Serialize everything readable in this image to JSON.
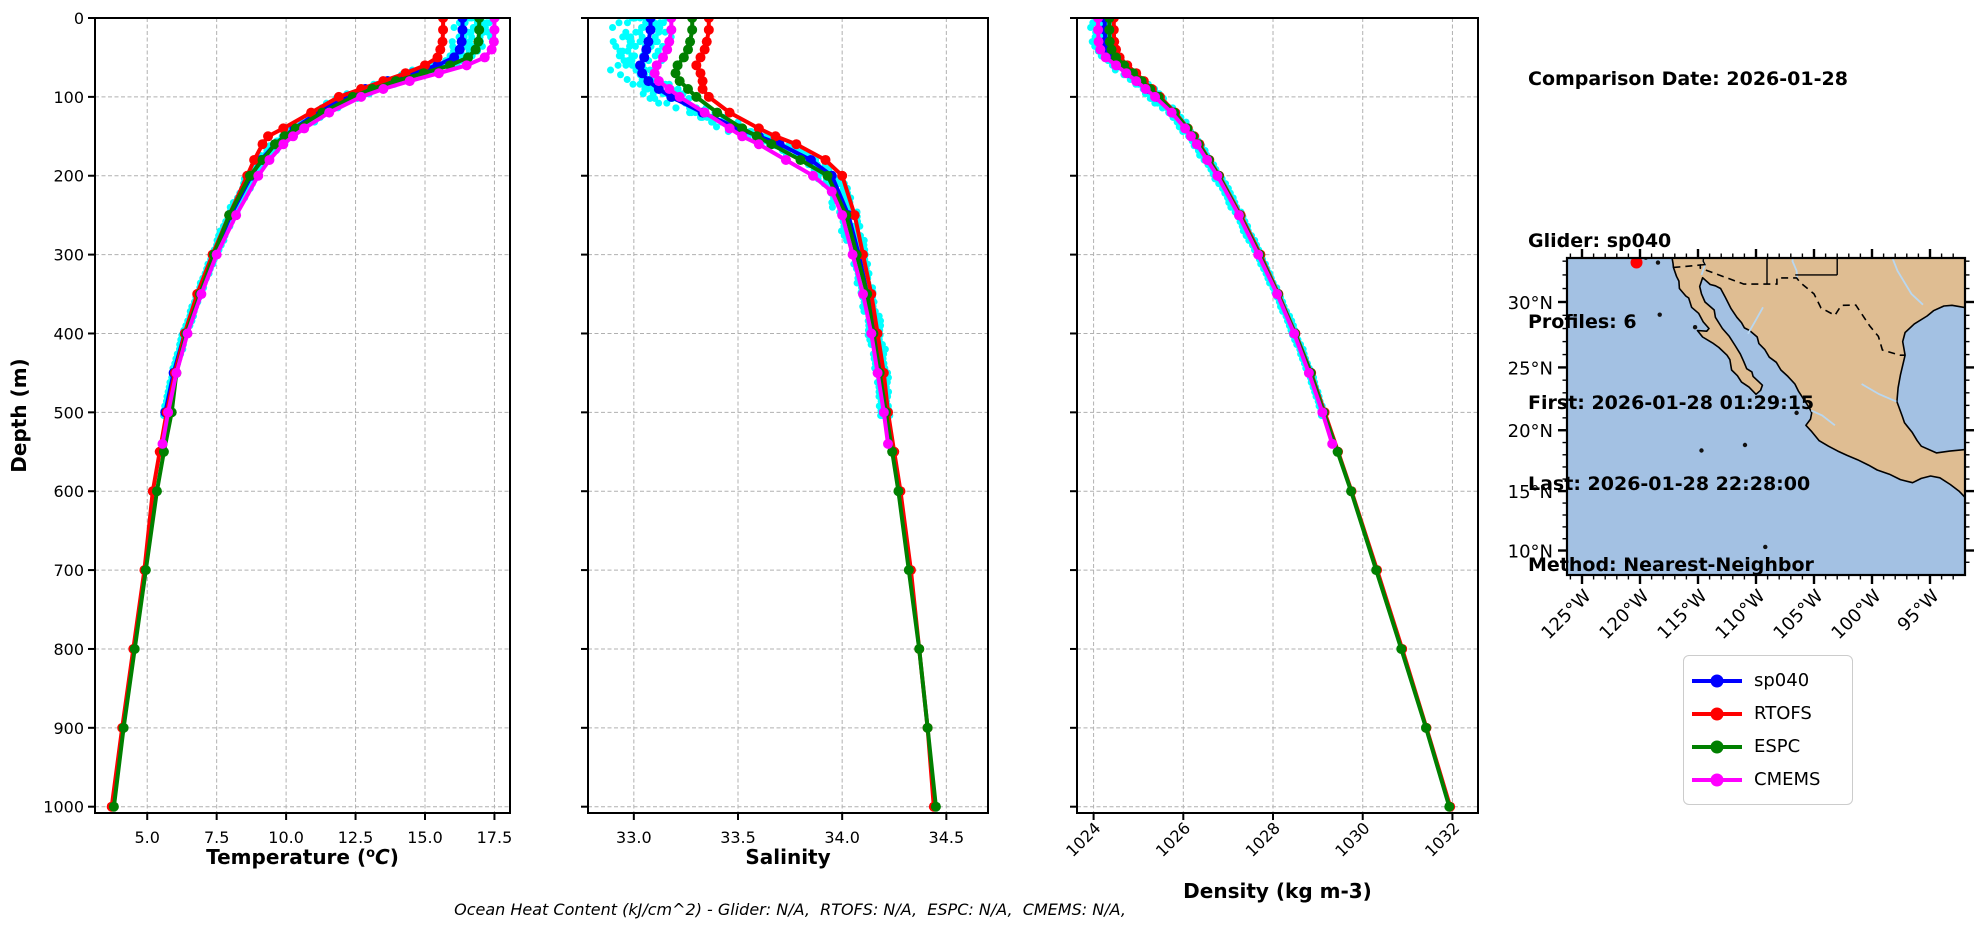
{
  "info_panel": {
    "comparison_date": "Comparison Date: 2026-01-28",
    "lines": [
      "Glider: sp040",
      "Profiles: 6",
      "First: 2026-01-28 01:29:15",
      "Last: 2026-01-28 22:28:00",
      "Method: Nearest-Neighbor"
    ]
  },
  "footer": "Ocean Heat Content (kJ/cm^2) - Glider: N/A,  RTOFS: N/A,  ESPC: N/A,  CMEMS: N/A,",
  "legend": {
    "entries": [
      {
        "label": "sp040",
        "color": "#0000ff"
      },
      {
        "label": "RTOFS",
        "color": "#ff0000"
      },
      {
        "label": "ESPC",
        "color": "#008000"
      },
      {
        "label": "CMEMS",
        "color": "#ff00ff"
      }
    ]
  },
  "colors": {
    "glider_raw": "#00ffff",
    "grid": "#b0b0b0",
    "axis": "#000000"
  },
  "chart_data": [
    {
      "id": "temperature",
      "type": "line",
      "xlabel": "Temperature (oC)",
      "xlabel_parts": {
        "pre": "Temperature (",
        "sup": "o",
        "italic": "C",
        "post": ")"
      },
      "ylabel": "Depth (m)",
      "xlim": [
        3.12,
        18.06
      ],
      "depth_lim": [
        0,
        1008
      ],
      "xticks": [
        5.0,
        7.5,
        10.0,
        12.5,
        15.0,
        17.5
      ],
      "xtick_labels": [
        "5.0",
        "7.5",
        "10.0",
        "12.5",
        "15.0",
        "17.5"
      ],
      "yticks": [
        0,
        100,
        200,
        300,
        400,
        500,
        600,
        700,
        800,
        900,
        1000
      ],
      "ytick_labels": [
        "0",
        "100",
        "200",
        "300",
        "400",
        "500",
        "600",
        "700",
        "800",
        "900",
        "1000"
      ],
      "grid": true,
      "series": [
        {
          "name": "sp040",
          "color": "#0000ff",
          "depths": [
            0,
            15,
            30,
            40,
            50,
            60,
            70,
            80,
            90,
            100,
            120,
            140,
            150,
            160,
            180,
            200,
            250,
            300,
            350,
            400,
            450,
            500
          ],
          "values": [
            16.35,
            16.35,
            16.32,
            16.25,
            16.05,
            15.45,
            14.55,
            13.65,
            12.85,
            12.2,
            11.15,
            10.3,
            9.95,
            9.6,
            9.1,
            8.75,
            8.0,
            7.4,
            6.85,
            6.35,
            5.95,
            5.65
          ]
        },
        {
          "name": "RTOFS",
          "color": "#ff0000",
          "depths": [
            0,
            15,
            30,
            40,
            50,
            60,
            70,
            80,
            90,
            100,
            120,
            140,
            150,
            160,
            180,
            200,
            250,
            300,
            350,
            400,
            450,
            500,
            550,
            600,
            700,
            800,
            900,
            1000
          ],
          "values": [
            15.65,
            15.65,
            15.63,
            15.55,
            15.45,
            15.0,
            14.3,
            13.5,
            12.7,
            11.9,
            10.9,
            9.9,
            9.35,
            9.15,
            8.85,
            8.6,
            7.95,
            7.35,
            6.8,
            6.35,
            6.0,
            5.7,
            5.45,
            5.2,
            4.9,
            4.5,
            4.1,
            3.72
          ]
        },
        {
          "name": "ESPC",
          "color": "#008000",
          "depths": [
            0,
            15,
            30,
            40,
            50,
            60,
            70,
            80,
            90,
            100,
            120,
            140,
            150,
            160,
            180,
            200,
            250,
            300,
            350,
            400,
            450,
            500,
            550,
            600,
            700,
            800,
            900,
            1000
          ],
          "values": [
            16.95,
            16.95,
            16.92,
            16.82,
            16.55,
            15.9,
            14.95,
            13.95,
            13.1,
            12.4,
            11.3,
            10.35,
            9.95,
            9.6,
            9.15,
            8.7,
            7.95,
            7.4,
            6.9,
            6.4,
            6.05,
            5.88,
            5.6,
            5.35,
            4.95,
            4.55,
            4.15,
            3.8
          ]
        },
        {
          "name": "CMEMS",
          "color": "#ff00ff",
          "depths": [
            0,
            15,
            30,
            40,
            50,
            60,
            70,
            80,
            90,
            100,
            120,
            140,
            150,
            160,
            180,
            200,
            250,
            300,
            350,
            400,
            450,
            500,
            540
          ],
          "values": [
            17.5,
            17.5,
            17.48,
            17.4,
            17.15,
            16.5,
            15.5,
            14.45,
            13.5,
            12.7,
            11.55,
            10.65,
            10.25,
            9.9,
            9.4,
            9.0,
            8.2,
            7.5,
            6.95,
            6.45,
            6.05,
            5.75,
            5.55
          ]
        }
      ],
      "raw_scatter": {
        "name": "glider-raw",
        "color": "#00ffff",
        "max_depth": 505,
        "amp0": 1.0,
        "amp_inf": 0.07,
        "decay": 110,
        "bias0": 0.45,
        "bias_decay": 75
      }
    },
    {
      "id": "salinity",
      "type": "line",
      "xlabel": "Salinity",
      "ylabel": "",
      "xlim": [
        32.78,
        34.7
      ],
      "depth_lim": [
        0,
        1008
      ],
      "xticks": [
        33.0,
        33.5,
        34.0,
        34.5
      ],
      "xtick_labels": [
        "33.0",
        "33.5",
        "34.0",
        "34.5"
      ],
      "yticks": [
        0,
        100,
        200,
        300,
        400,
        500,
        600,
        700,
        800,
        900,
        1000
      ],
      "ytick_labels": [],
      "grid": true,
      "series": [
        {
          "name": "sp040",
          "color": "#0000ff",
          "depths": [
            0,
            15,
            30,
            40,
            50,
            60,
            70,
            80,
            90,
            100,
            120,
            140,
            150,
            160,
            180,
            200,
            250,
            300,
            350,
            400,
            450,
            500
          ],
          "values": [
            33.08,
            33.08,
            33.07,
            33.06,
            33.05,
            33.03,
            33.04,
            33.07,
            33.12,
            33.18,
            33.33,
            33.5,
            33.6,
            33.7,
            33.85,
            33.95,
            34.03,
            34.08,
            34.12,
            34.16,
            34.19,
            34.21
          ]
        },
        {
          "name": "RTOFS",
          "color": "#ff0000",
          "depths": [
            0,
            15,
            30,
            40,
            50,
            60,
            70,
            80,
            90,
            100,
            120,
            140,
            150,
            160,
            180,
            200,
            250,
            300,
            350,
            400,
            450,
            500,
            550,
            600,
            700,
            800,
            900,
            1000
          ],
          "values": [
            33.36,
            33.36,
            33.35,
            33.34,
            33.32,
            33.3,
            33.32,
            33.33,
            33.33,
            33.36,
            33.46,
            33.6,
            33.68,
            33.78,
            33.92,
            34.0,
            34.06,
            34.1,
            34.14,
            34.17,
            34.2,
            34.22,
            34.25,
            34.28,
            34.33,
            34.37,
            34.41,
            34.44
          ]
        },
        {
          "name": "ESPC",
          "color": "#008000",
          "depths": [
            0,
            15,
            30,
            40,
            50,
            60,
            70,
            80,
            90,
            100,
            120,
            140,
            150,
            160,
            180,
            200,
            250,
            300,
            350,
            400,
            450,
            500,
            550,
            600,
            700,
            800,
            900,
            1000
          ],
          "values": [
            33.28,
            33.28,
            33.27,
            33.26,
            33.24,
            33.21,
            33.2,
            33.22,
            33.26,
            33.3,
            33.4,
            33.52,
            33.59,
            33.66,
            33.8,
            33.93,
            34.02,
            34.07,
            34.12,
            34.15,
            34.18,
            34.21,
            34.24,
            34.27,
            34.32,
            34.37,
            34.41,
            34.45
          ]
        },
        {
          "name": "CMEMS",
          "color": "#ff00ff",
          "depths": [
            0,
            15,
            30,
            40,
            50,
            60,
            70,
            80,
            90,
            100,
            120,
            140,
            150,
            160,
            180,
            200,
            220,
            250,
            300,
            350,
            400,
            450,
            500,
            540
          ],
          "values": [
            33.18,
            33.18,
            33.17,
            33.16,
            33.14,
            33.11,
            33.1,
            33.12,
            33.17,
            33.22,
            33.34,
            33.46,
            33.52,
            33.6,
            33.73,
            33.86,
            33.95,
            34.0,
            34.05,
            34.1,
            34.14,
            34.17,
            34.2,
            34.22
          ]
        }
      ],
      "raw_scatter": {
        "name": "glider-raw",
        "color": "#00ffff",
        "max_depth": 505,
        "amp0": 0.18,
        "amp_inf": 0.03,
        "decay": 130,
        "bias0": -0.05,
        "bias_decay": 90
      }
    },
    {
      "id": "density",
      "type": "line",
      "xlabel": "Density (kg m-3)",
      "ylabel": "",
      "xlim": [
        1023.63,
        1032.57
      ],
      "depth_lim": [
        0,
        1008
      ],
      "xticks": [
        1024,
        1026,
        1028,
        1030,
        1032
      ],
      "xtick_labels": [
        "1024",
        "1026",
        "1028",
        "1030",
        "1032"
      ],
      "xtick_rotate": true,
      "yticks": [
        0,
        100,
        200,
        300,
        400,
        500,
        600,
        700,
        800,
        900,
        1000
      ],
      "ytick_labels": [],
      "grid": true,
      "series": [
        {
          "name": "sp040",
          "color": "#0000ff",
          "depths": [
            0,
            15,
            30,
            40,
            50,
            60,
            70,
            80,
            90,
            100,
            120,
            140,
            150,
            160,
            180,
            200,
            250,
            300,
            350,
            400,
            450,
            500
          ],
          "values": [
            1024.25,
            1024.25,
            1024.26,
            1024.3,
            1024.4,
            1024.6,
            1024.82,
            1025.02,
            1025.22,
            1025.42,
            1025.78,
            1026.08,
            1026.2,
            1026.32,
            1026.55,
            1026.78,
            1027.25,
            1027.68,
            1028.1,
            1028.48,
            1028.82,
            1029.12
          ]
        },
        {
          "name": "RTOFS",
          "color": "#ff0000",
          "depths": [
            0,
            15,
            30,
            40,
            50,
            60,
            70,
            80,
            90,
            100,
            120,
            140,
            150,
            160,
            180,
            200,
            250,
            300,
            350,
            400,
            450,
            500,
            550,
            600,
            700,
            800,
            900,
            1000
          ],
          "values": [
            1024.45,
            1024.45,
            1024.46,
            1024.5,
            1024.58,
            1024.75,
            1024.95,
            1025.12,
            1025.3,
            1025.48,
            1025.82,
            1026.1,
            1026.24,
            1026.36,
            1026.58,
            1026.8,
            1027.28,
            1027.72,
            1028.12,
            1028.5,
            1028.85,
            1029.15,
            1029.45,
            1029.75,
            1030.32,
            1030.88,
            1031.42,
            1031.95
          ]
        },
        {
          "name": "ESPC",
          "color": "#008000",
          "depths": [
            0,
            15,
            30,
            40,
            50,
            60,
            70,
            80,
            90,
            100,
            120,
            140,
            150,
            160,
            180,
            200,
            250,
            300,
            350,
            400,
            450,
            500,
            550,
            600,
            700,
            800,
            900,
            1000
          ],
          "values": [
            1024.35,
            1024.35,
            1024.36,
            1024.4,
            1024.5,
            1024.68,
            1024.88,
            1025.07,
            1025.26,
            1025.45,
            1025.8,
            1026.09,
            1026.22,
            1026.34,
            1026.57,
            1026.79,
            1027.26,
            1027.7,
            1028.11,
            1028.49,
            1028.84,
            1029.13,
            1029.44,
            1029.74,
            1030.3,
            1030.86,
            1031.41,
            1031.93
          ]
        },
        {
          "name": "CMEMS",
          "color": "#ff00ff",
          "depths": [
            0,
            15,
            30,
            40,
            50,
            60,
            70,
            80,
            90,
            100,
            120,
            140,
            150,
            160,
            180,
            200,
            250,
            300,
            350,
            400,
            450,
            500,
            540
          ],
          "values": [
            1024.1,
            1024.1,
            1024.11,
            1024.15,
            1024.27,
            1024.5,
            1024.73,
            1024.95,
            1025.16,
            1025.37,
            1025.74,
            1026.04,
            1026.17,
            1026.3,
            1026.53,
            1026.76,
            1027.24,
            1027.67,
            1028.09,
            1028.47,
            1028.8,
            1029.1,
            1029.32
          ]
        }
      ],
      "raw_scatter": {
        "name": "glider-raw",
        "color": "#00ffff",
        "max_depth": 505,
        "amp0": 0.3,
        "amp_inf": 0.05,
        "decay": 120,
        "bias0": -0.1,
        "bias_decay": 90
      }
    },
    {
      "id": "map",
      "type": "map",
      "lon_ticks": [
        -125,
        -120,
        -115,
        -110,
        -105,
        -100,
        -95
      ],
      "lon_tick_labels": [
        "125°W",
        "120°W",
        "115°W",
        "110°W",
        "105°W",
        "100°W",
        "95°W"
      ],
      "lat_ticks": [
        30,
        25,
        20,
        15,
        10
      ],
      "lat_tick_labels": [
        "30°N",
        "25°N",
        "20°N",
        "15°N",
        "10°N"
      ],
      "extent": {
        "lon": [
          -126.3,
          -92.0
        ],
        "lat": [
          7.9,
          33.2
        ]
      },
      "ocean_color": "#a3c1e3",
      "land_color": "#dfbd92",
      "river_color": "#b9d7f0",
      "coast_color": "#000000",
      "marker": {
        "lon": -120.3,
        "lat": 32.9,
        "color": "#ff0000"
      }
    }
  ]
}
